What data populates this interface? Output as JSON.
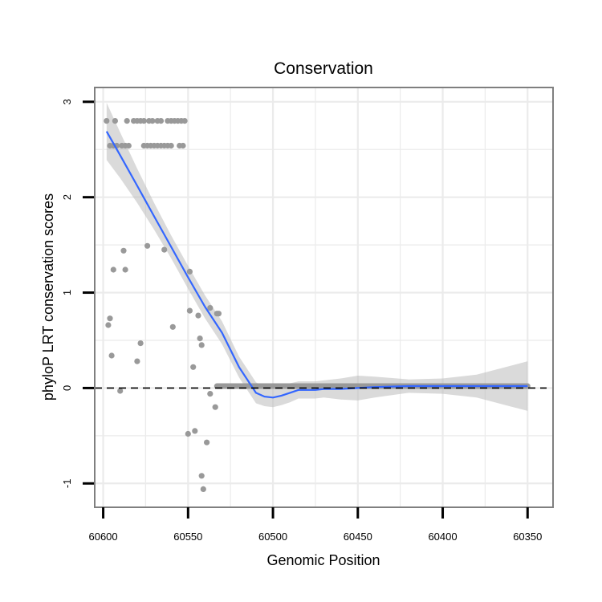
{
  "chart_data": {
    "type": "scatter",
    "title": "Conservation",
    "xlabel": "Genomic Position",
    "ylabel": "phyloP LRT conservation scores",
    "x_reversed": true,
    "xlim": [
      60605,
      60335
    ],
    "ylim": [
      -1.25,
      3.15
    ],
    "xticks": [
      60600,
      60550,
      60500,
      60450,
      60400,
      60350
    ],
    "xtick_labels": [
      "60600",
      "60550",
      "60500",
      "60450",
      "60400",
      "60350"
    ],
    "yticks": [
      -1,
      0,
      1,
      2,
      3
    ],
    "ytick_labels": [
      "-1",
      "0",
      "1",
      "2",
      "3"
    ],
    "grid": true,
    "reference_line": {
      "y": 0,
      "style": "dashed"
    },
    "colors": {
      "points": "#999999",
      "smooth": "#3366ff",
      "ribbon": "#bbbbbb",
      "grid": "#ebebeb",
      "panel_border": "#7f7f7f"
    },
    "series": [
      {
        "name": "phyloP scores",
        "kind": "points",
        "points": [
          [
            60598,
            2.8
          ],
          [
            60593,
            2.8
          ],
          [
            60586,
            2.8
          ],
          [
            60582,
            2.8
          ],
          [
            60580,
            2.8
          ],
          [
            60578,
            2.8
          ],
          [
            60576,
            2.8
          ],
          [
            60573,
            2.8
          ],
          [
            60571,
            2.8
          ],
          [
            60568,
            2.8
          ],
          [
            60566,
            2.8
          ],
          [
            60562,
            2.8
          ],
          [
            60560,
            2.8
          ],
          [
            60558,
            2.8
          ],
          [
            60556,
            2.8
          ],
          [
            60554,
            2.8
          ],
          [
            60552,
            2.8
          ],
          [
            60596,
            2.54
          ],
          [
            60594,
            2.54
          ],
          [
            60592,
            2.54
          ],
          [
            60589,
            2.54
          ],
          [
            60587,
            2.54
          ],
          [
            60585,
            2.54
          ],
          [
            60576,
            2.54
          ],
          [
            60574,
            2.54
          ],
          [
            60572,
            2.54
          ],
          [
            60570,
            2.54
          ],
          [
            60568,
            2.54
          ],
          [
            60566,
            2.54
          ],
          [
            60564,
            2.54
          ],
          [
            60562,
            2.54
          ],
          [
            60560,
            2.54
          ],
          [
            60555,
            2.54
          ],
          [
            60553,
            2.54
          ],
          [
            60588,
            1.44
          ],
          [
            60574,
            1.49
          ],
          [
            60564,
            1.45
          ],
          [
            60549,
            1.22
          ],
          [
            60594,
            1.24
          ],
          [
            60587,
            1.24
          ],
          [
            60596,
            0.73
          ],
          [
            60597,
            0.66
          ],
          [
            60595,
            0.34
          ],
          [
            60590,
            -0.03
          ],
          [
            60578,
            0.47
          ],
          [
            60580,
            0.28
          ],
          [
            60559,
            0.64
          ],
          [
            60549,
            0.81
          ],
          [
            60544,
            0.76
          ],
          [
            60537,
            0.84
          ],
          [
            60533,
            0.78
          ],
          [
            60532,
            0.78
          ],
          [
            60543,
            0.52
          ],
          [
            60542,
            0.45
          ],
          [
            60547,
            0.22
          ],
          [
            60537,
            -0.06
          ],
          [
            60534,
            -0.2
          ],
          [
            60550,
            -0.48
          ],
          [
            60546,
            -0.45
          ],
          [
            60539,
            -0.57
          ],
          [
            60542,
            -0.92
          ],
          [
            60541,
            -1.06
          ]
        ],
        "zero_band": {
          "x_from": 60533,
          "x_to": 60350,
          "y": 0.02
        }
      },
      {
        "name": "loess fit",
        "kind": "smooth",
        "x": [
          60598,
          60590,
          60580,
          60570,
          60560,
          60550,
          60540,
          60530,
          60520,
          60510,
          60505,
          60500,
          60495,
          60490,
          60485,
          60480,
          60475,
          60470,
          60460,
          60450,
          60440,
          60420,
          60400,
          60380,
          60350
        ],
        "y": [
          2.69,
          2.44,
          2.12,
          1.8,
          1.48,
          1.16,
          0.85,
          0.58,
          0.22,
          -0.05,
          -0.09,
          -0.1,
          -0.08,
          -0.05,
          -0.02,
          -0.02,
          -0.02,
          -0.01,
          -0.01,
          0.0,
          0.01,
          0.02,
          0.02,
          0.02,
          0.02
        ],
        "upper": [
          2.99,
          2.68,
          2.3,
          1.94,
          1.6,
          1.28,
          0.97,
          0.7,
          0.33,
          0.06,
          0.01,
          0.0,
          0.02,
          0.05,
          0.07,
          0.07,
          0.07,
          0.08,
          0.1,
          0.13,
          0.12,
          0.09,
          0.1,
          0.14,
          0.28
        ],
        "lower": [
          2.39,
          2.2,
          1.94,
          1.66,
          1.36,
          1.04,
          0.73,
          0.46,
          0.11,
          -0.16,
          -0.19,
          -0.2,
          -0.18,
          -0.15,
          -0.11,
          -0.11,
          -0.11,
          -0.1,
          -0.12,
          -0.13,
          -0.1,
          -0.05,
          -0.06,
          -0.1,
          -0.24
        ]
      }
    ]
  }
}
